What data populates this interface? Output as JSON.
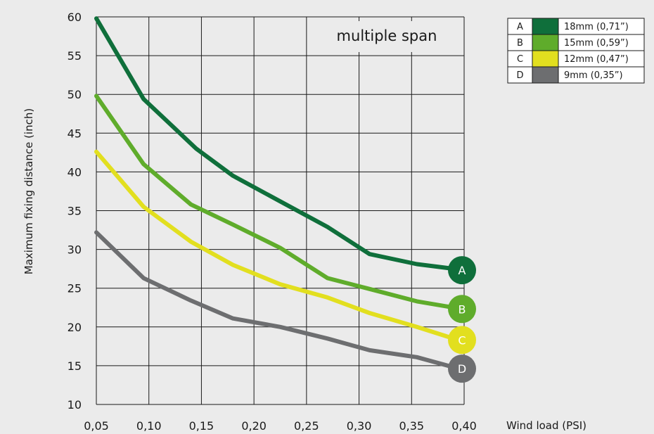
{
  "chart_data": {
    "type": "line",
    "title": "multiple span",
    "xlabel": "Wind load (PSI)",
    "ylabel": "Maximum fixing distance (inch)",
    "x": [
      0.05,
      0.1,
      0.15,
      0.2,
      0.25,
      0.3,
      0.35,
      0.4
    ],
    "x_tick_labels": [
      "0,05",
      "0,10",
      "0,15",
      "0,20",
      "0,25",
      "0,30",
      "0,35",
      "0,40"
    ],
    "xlim": [
      0.05,
      0.4
    ],
    "ylim": [
      10,
      60
    ],
    "y_ticks": [
      10,
      15,
      20,
      25,
      30,
      35,
      40,
      45,
      50,
      55,
      60
    ],
    "grid": true,
    "legend_position": "top-right",
    "series": [
      {
        "name": "A",
        "legend_label": "18mm (0,71”)",
        "color": "#0f6f3b",
        "points": [
          [
            0.05,
            59.8
          ],
          [
            0.095,
            49.4
          ],
          [
            0.145,
            43.0
          ],
          [
            0.18,
            39.5
          ],
          [
            0.225,
            36.2
          ],
          [
            0.27,
            32.9
          ],
          [
            0.31,
            29.4
          ],
          [
            0.355,
            28.1
          ],
          [
            0.39,
            27.5
          ]
        ]
      },
      {
        "name": "B",
        "legend_label": "15mm (0,59”)",
        "color": "#5fac2b",
        "points": [
          [
            0.05,
            49.8
          ],
          [
            0.095,
            41.0
          ],
          [
            0.14,
            35.8
          ],
          [
            0.18,
            33.2
          ],
          [
            0.225,
            30.2
          ],
          [
            0.27,
            26.3
          ],
          [
            0.31,
            24.9
          ],
          [
            0.355,
            23.3
          ],
          [
            0.39,
            22.5
          ]
        ]
      },
      {
        "name": "C",
        "legend_label": "12mm (0,47”)",
        "color": "#e2df1f",
        "points": [
          [
            0.05,
            42.6
          ],
          [
            0.095,
            35.5
          ],
          [
            0.14,
            31.0
          ],
          [
            0.18,
            28.0
          ],
          [
            0.225,
            25.5
          ],
          [
            0.27,
            23.8
          ],
          [
            0.31,
            21.8
          ],
          [
            0.355,
            20.0
          ],
          [
            0.39,
            18.5
          ]
        ]
      },
      {
        "name": "D",
        "legend_label": "9mm (0,35”)",
        "color": "#6d6e70",
        "points": [
          [
            0.05,
            32.2
          ],
          [
            0.095,
            26.3
          ],
          [
            0.14,
            23.4
          ],
          [
            0.18,
            21.1
          ],
          [
            0.225,
            20.0
          ],
          [
            0.27,
            18.5
          ],
          [
            0.31,
            17.0
          ],
          [
            0.355,
            16.1
          ],
          [
            0.39,
            14.8
          ]
        ]
      }
    ]
  }
}
